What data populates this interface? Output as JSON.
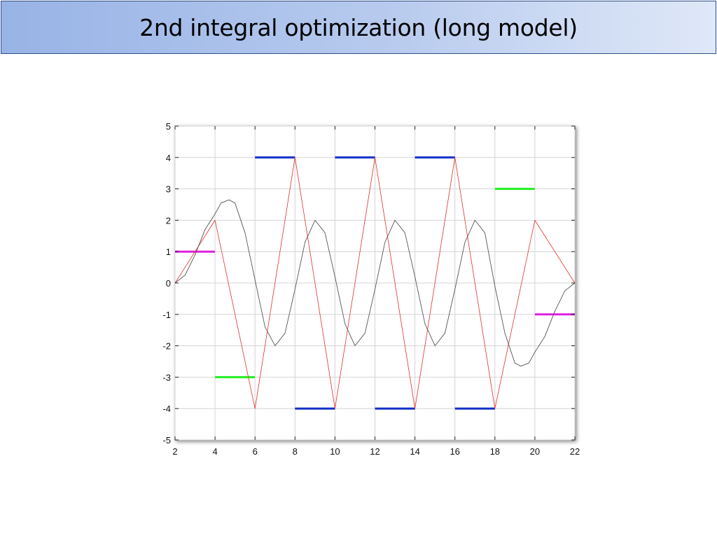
{
  "slide": {
    "title": "2nd integral optimization (long model)"
  },
  "chart_data": {
    "type": "line",
    "title": "",
    "xlabel": "",
    "ylabel": "",
    "xlim": [
      2,
      22
    ],
    "ylim": [
      -5,
      5
    ],
    "xticks": [
      2,
      4,
      6,
      8,
      10,
      12,
      14,
      16,
      18,
      20,
      22
    ],
    "yticks": [
      -5,
      -4,
      -3,
      -2,
      -1,
      0,
      1,
      2,
      3,
      4,
      5
    ],
    "grid": true,
    "legend": "none",
    "colors": {
      "magenta": "#e020e0",
      "green": "#22ee22",
      "blue": "#1530c8",
      "red": "#e0302a",
      "black": "#555555"
    },
    "step_segments": [
      {
        "x0": 2,
        "x1": 4,
        "y": 1,
        "color": "magenta"
      },
      {
        "x0": 4,
        "x1": 6,
        "y": -3,
        "color": "green"
      },
      {
        "x0": 6,
        "x1": 8,
        "y": 4,
        "color": "blue"
      },
      {
        "x0": 8,
        "x1": 10,
        "y": -4,
        "color": "blue"
      },
      {
        "x0": 10,
        "x1": 12,
        "y": 4,
        "color": "blue"
      },
      {
        "x0": 12,
        "x1": 14,
        "y": -4,
        "color": "blue"
      },
      {
        "x0": 14,
        "x1": 16,
        "y": 4,
        "color": "blue"
      },
      {
        "x0": 16,
        "x1": 18,
        "y": -4,
        "color": "blue"
      },
      {
        "x0": 18,
        "x1": 20,
        "y": 3,
        "color": "green"
      },
      {
        "x0": 20,
        "x1": 22,
        "y": -1,
        "color": "magenta"
      }
    ],
    "series": [
      {
        "color": "red",
        "x": [
          2,
          4,
          6,
          8,
          10,
          12,
          14,
          16,
          18,
          20,
          22
        ],
        "values": [
          0,
          2,
          -4,
          4,
          -4,
          4,
          -4,
          4,
          -4,
          2,
          0
        ]
      },
      {
        "color": "black",
        "x": [
          2,
          2.5,
          3,
          3.5,
          4,
          4.3,
          4.7,
          5,
          5.5,
          6,
          6.5,
          7,
          7.5,
          8,
          8.5,
          9,
          9.5,
          10,
          10.5,
          11,
          11.5,
          12,
          12.5,
          13,
          13.5,
          14,
          14.5,
          15,
          15.5,
          16,
          16.5,
          17,
          17.5,
          18,
          18.5,
          19,
          19.3,
          19.7,
          20,
          20.5,
          21,
          21.5,
          22
        ],
        "values": [
          0,
          0.25,
          0.9,
          1.7,
          2.2,
          2.55,
          2.65,
          2.55,
          1.6,
          0.1,
          -1.4,
          -2.0,
          -1.6,
          -0.2,
          1.3,
          2.0,
          1.6,
          0.2,
          -1.3,
          -2.0,
          -1.6,
          -0.2,
          1.3,
          2.0,
          1.6,
          0.2,
          -1.3,
          -2.0,
          -1.6,
          -0.2,
          1.3,
          2.0,
          1.6,
          -0.1,
          -1.6,
          -2.55,
          -2.65,
          -2.55,
          -2.2,
          -1.7,
          -0.9,
          -0.25,
          0
        ]
      }
    ]
  }
}
